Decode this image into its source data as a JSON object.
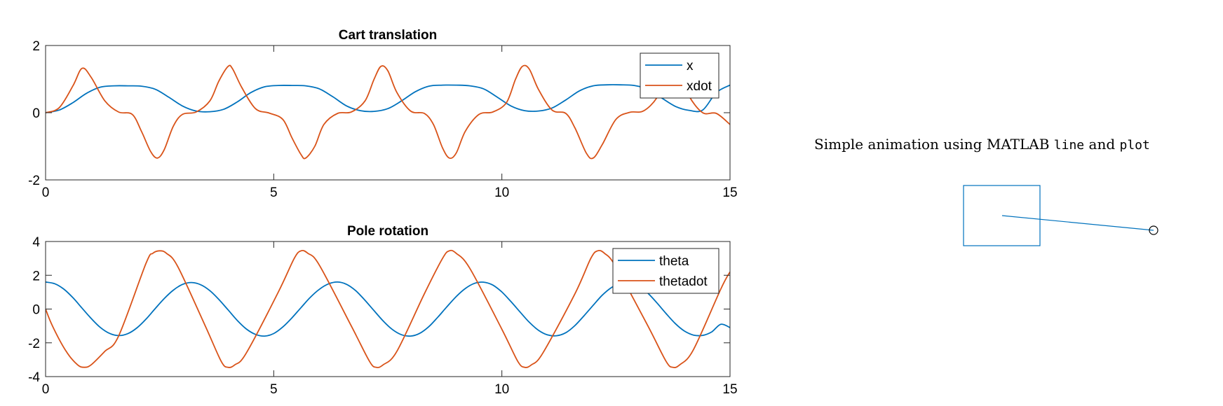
{
  "colors": {
    "blue": "#0072bd",
    "orange": "#d95319",
    "axis": "#262626"
  },
  "chart_data": [
    {
      "type": "line",
      "title": "Cart translation",
      "xlabel": "",
      "ylabel": "",
      "xlim": [
        0,
        15
      ],
      "ylim": [
        -2,
        2
      ],
      "xticks": [
        0,
        5,
        10,
        15
      ],
      "yticks": [
        -2,
        0,
        2
      ],
      "grid": false,
      "legend_position": "top-right",
      "series": [
        {
          "name": "x",
          "color": "#0072bd",
          "x": [
            0,
            0.3,
            0.6,
            0.9,
            1.2,
            1.5,
            1.8,
            2.1,
            2.4,
            2.7,
            3.0,
            3.3,
            3.6,
            3.9,
            4.2,
            4.5,
            4.8,
            5.1,
            5.4,
            5.7,
            6.0,
            6.3,
            6.6,
            6.9,
            7.2,
            7.5,
            7.8,
            8.1,
            8.4,
            8.7,
            9.0,
            9.3,
            9.6,
            9.9,
            10.2,
            10.5,
            10.8,
            11.1,
            11.4,
            11.7,
            12.0,
            12.3,
            12.6,
            12.9,
            13.2,
            13.5,
            13.8,
            14.1,
            14.4,
            14.7,
            15.0
          ],
          "y": [
            0.0,
            0.08,
            0.3,
            0.58,
            0.76,
            0.8,
            0.8,
            0.79,
            0.7,
            0.46,
            0.2,
            0.05,
            0.03,
            0.1,
            0.32,
            0.6,
            0.77,
            0.81,
            0.81,
            0.8,
            0.71,
            0.47,
            0.2,
            0.06,
            0.04,
            0.12,
            0.35,
            0.62,
            0.79,
            0.82,
            0.82,
            0.8,
            0.71,
            0.46,
            0.2,
            0.06,
            0.05,
            0.14,
            0.38,
            0.65,
            0.8,
            0.83,
            0.83,
            0.81,
            0.7,
            0.44,
            0.19,
            0.07,
            0.08,
            0.6,
            0.82
          ]
        },
        {
          "name": "xdot",
          "color": "#d95319",
          "x": [
            0,
            0.3,
            0.6,
            0.8,
            1.0,
            1.3,
            1.6,
            1.9,
            2.1,
            2.3,
            2.45,
            2.6,
            2.8,
            3.0,
            3.3,
            3.6,
            3.8,
            4.0,
            4.1,
            4.3,
            4.6,
            4.9,
            5.2,
            5.4,
            5.6,
            5.7,
            5.9,
            6.1,
            6.4,
            6.7,
            7.0,
            7.2,
            7.35,
            7.5,
            7.7,
            8.0,
            8.3,
            8.5,
            8.7,
            8.85,
            9.0,
            9.2,
            9.5,
            9.8,
            10.1,
            10.3,
            10.45,
            10.6,
            10.8,
            11.1,
            11.4,
            11.6,
            11.85,
            12.0,
            12.2,
            12.5,
            12.8,
            13.1,
            13.4,
            13.6,
            13.75,
            13.9,
            14.1,
            14.4,
            14.7,
            15.0
          ],
          "y": [
            0.0,
            0.15,
            0.8,
            1.32,
            1.05,
            0.35,
            0.02,
            -0.05,
            -0.55,
            -1.15,
            -1.35,
            -1.1,
            -0.4,
            -0.05,
            0.02,
            0.35,
            0.95,
            1.38,
            1.3,
            0.75,
            0.12,
            -0.01,
            -0.2,
            -0.75,
            -1.25,
            -1.35,
            -1.0,
            -0.35,
            -0.02,
            0.02,
            0.35,
            1.0,
            1.38,
            1.25,
            0.6,
            0.05,
            -0.02,
            -0.35,
            -1.05,
            -1.35,
            -1.2,
            -0.55,
            -0.05,
            0.02,
            0.3,
            1.0,
            1.38,
            1.3,
            0.7,
            0.08,
            -0.02,
            -0.45,
            -1.2,
            -1.35,
            -0.95,
            -0.2,
            0.01,
            0.05,
            0.45,
            1.1,
            1.35,
            1.2,
            0.5,
            0.0,
            -0.02,
            -0.35
          ]
        }
      ]
    },
    {
      "type": "line",
      "title": "Pole rotation",
      "xlabel": "",
      "ylabel": "",
      "xlim": [
        0,
        15
      ],
      "ylim": [
        -4,
        4
      ],
      "xticks": [
        0,
        5,
        10,
        15
      ],
      "yticks": [
        -4,
        -2,
        0,
        2,
        4
      ],
      "grid": false,
      "legend_position": "top-right",
      "series": [
        {
          "name": "theta",
          "color": "#0072bd",
          "x": [
            0,
            0.2,
            0.4,
            0.6,
            0.8,
            1.0,
            1.2,
            1.4,
            1.6,
            1.8,
            2.0,
            2.2,
            2.4,
            2.6,
            2.8,
            3.0,
            3.2,
            3.4,
            3.6,
            3.8,
            4.0,
            4.2,
            4.4,
            4.6,
            4.8,
            5.0,
            5.2,
            5.4,
            5.6,
            5.8,
            6.0,
            6.2,
            6.4,
            6.6,
            6.8,
            7.0,
            7.2,
            7.4,
            7.6,
            7.8,
            8.0,
            8.2,
            8.4,
            8.6,
            8.8,
            9.0,
            9.2,
            9.4,
            9.6,
            9.8,
            10.0,
            10.2,
            10.4,
            10.6,
            10.8,
            11.0,
            11.2,
            11.4,
            11.6,
            11.8,
            12.0,
            12.2,
            12.4,
            12.6,
            12.8,
            13.0,
            13.2,
            13.4,
            13.6,
            13.8,
            14.0,
            14.2,
            14.4,
            14.6,
            14.8,
            15.0
          ],
          "y": [
            1.6,
            1.5,
            1.18,
            0.67,
            0.05,
            -0.56,
            -1.09,
            -1.44,
            -1.57,
            -1.46,
            -1.12,
            -0.6,
            0.02,
            0.62,
            1.12,
            1.46,
            1.57,
            1.44,
            1.09,
            0.56,
            -0.05,
            -0.67,
            -1.18,
            -1.5,
            -1.6,
            -1.45,
            -1.06,
            -0.52,
            0.09,
            0.69,
            1.17,
            1.49,
            1.6,
            1.46,
            1.08,
            0.52,
            -0.1,
            -0.71,
            -1.21,
            -1.52,
            -1.6,
            -1.44,
            -1.04,
            -0.47,
            0.15,
            0.74,
            1.22,
            1.52,
            1.59,
            1.42,
            1.01,
            0.44,
            -0.18,
            -0.78,
            -1.25,
            -1.53,
            -1.58,
            -1.4,
            -0.98,
            -0.4,
            0.22,
            0.82,
            1.27,
            1.54,
            1.57,
            1.38,
            0.94,
            0.36,
            -0.27,
            -0.86,
            -1.3,
            -1.54,
            -1.56,
            -1.35,
            -0.9,
            -1.1
          ]
        },
        {
          "name": "thetadot",
          "color": "#d95319",
          "x": [
            0,
            0.15,
            0.45,
            0.7,
            0.85,
            1.0,
            1.3,
            1.6,
            2.2,
            2.35,
            2.5,
            2.65,
            2.9,
            3.5,
            3.85,
            4.0,
            4.15,
            4.4,
            5.1,
            5.45,
            5.6,
            5.75,
            6.0,
            6.7,
            7.1,
            7.25,
            7.4,
            7.7,
            8.3,
            8.7,
            8.85,
            9.0,
            9.3,
            10.0,
            10.35,
            10.5,
            10.65,
            10.9,
            11.6,
            11.95,
            12.1,
            12.25,
            12.5,
            13.2,
            13.6,
            13.75,
            13.9,
            14.2,
            14.8,
            15.0
          ],
          "y": [
            0.0,
            -1.0,
            -2.5,
            -3.3,
            -3.45,
            -3.3,
            -2.5,
            -1.6,
            2.7,
            3.3,
            3.45,
            3.3,
            2.5,
            -1.0,
            -3.1,
            -3.45,
            -3.3,
            -2.6,
            1.0,
            3.0,
            3.45,
            3.3,
            2.6,
            -1.0,
            -3.1,
            -3.45,
            -3.3,
            -2.5,
            0.9,
            3.0,
            3.45,
            3.3,
            2.4,
            -1.2,
            -3.1,
            -3.45,
            -3.3,
            -2.6,
            0.9,
            3.0,
            3.45,
            3.3,
            2.5,
            -1.0,
            -3.1,
            -3.45,
            -3.3,
            -2.4,
            1.2,
            2.2
          ]
        }
      ]
    }
  ],
  "animation": {
    "text_parts": [
      "Simple animation using MATLAB ",
      "line",
      " and ",
      "plot"
    ]
  }
}
